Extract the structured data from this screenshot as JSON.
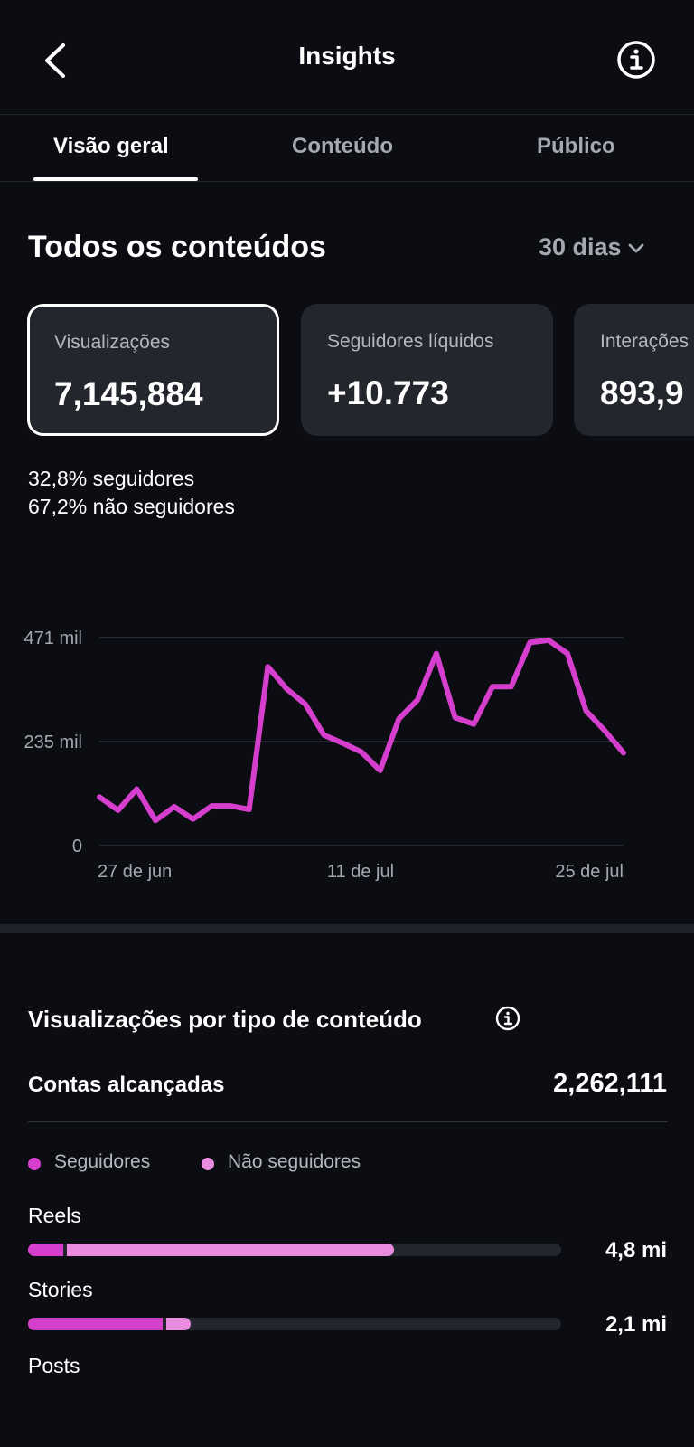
{
  "header": {
    "title": "Insights",
    "back_icon": "chevron-left-icon",
    "info_icon": "info-icon"
  },
  "tabs": [
    {
      "label": "Visão geral",
      "active": true
    },
    {
      "label": "Conteúdo",
      "active": false
    },
    {
      "label": "Público",
      "active": false
    }
  ],
  "overview": {
    "title": "Todos os conteúdos",
    "period": "30 dias",
    "cards": [
      {
        "label": "Visualizações",
        "value": "7,145,884",
        "selected": true
      },
      {
        "label": "Seguidores líquidos",
        "value": "+10.773",
        "selected": false
      },
      {
        "label": "Interações",
        "value": "893,9",
        "selected": false
      }
    ],
    "split": {
      "followers_pct": "32,8%",
      "followers_label": "seguidores",
      "non_followers_pct": "67,2%",
      "non_followers_label": "não seguidores"
    }
  },
  "chart_data": {
    "type": "line",
    "title": "",
    "xlabel": "",
    "ylabel": "",
    "y_tick_labels": [
      "471 mil",
      "235 mil",
      "0"
    ],
    "y_tick_values": [
      471000,
      235000,
      0
    ],
    "x_tick_labels": [
      "27 de jun",
      "11 de jul",
      "25 de jul"
    ],
    "ylim": [
      0,
      471000
    ],
    "grid": true,
    "line_color": "#d63fce",
    "series": [
      {
        "values": [
          110000,
          80000,
          128000,
          57000,
          88000,
          60000,
          90000,
          90000,
          82000,
          405000,
          355000,
          320000,
          250000,
          232000,
          212000,
          170000,
          287000,
          330000,
          435000,
          290000,
          275000,
          360000,
          360000,
          460000,
          465000,
          435000,
          305000,
          260000,
          210000
        ]
      }
    ]
  },
  "content_types": {
    "title": "Visualizações por tipo de conteúdo",
    "info_icon": "info-icon",
    "reach_label": "Contas alcançadas",
    "reach_value": "2,262,111",
    "legend": [
      {
        "label": "Seguidores",
        "color": "#d63fce"
      },
      {
        "label": "Não seguidores",
        "color": "#e98ce0"
      }
    ],
    "rows": [
      {
        "label": "Reels",
        "value": "4,8 mi",
        "followers_fraction": 0.066,
        "non_followers_fraction": 0.614
      },
      {
        "label": "Stories",
        "value": "2,1 mi",
        "followers_fraction": 0.252,
        "non_followers_fraction": 0.046
      },
      {
        "label": "Posts"
      }
    ]
  }
}
